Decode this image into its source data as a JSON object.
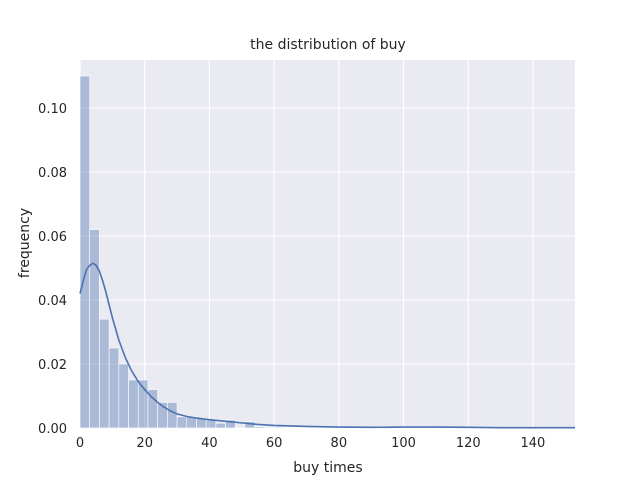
{
  "chart_data": {
    "type": "bar",
    "title": "the distribution of buy",
    "xlabel": "buy times",
    "ylabel": "frequency",
    "xlim": [
      0,
      153
    ],
    "ylim": [
      0,
      0.115
    ],
    "x_ticks": [
      0,
      20,
      40,
      60,
      80,
      100,
      120,
      140
    ],
    "y_ticks": [
      0.0,
      0.02,
      0.04,
      0.06,
      0.08,
      0.1
    ],
    "y_tick_labels": [
      "0.00",
      "0.02",
      "0.04",
      "0.06",
      "0.08",
      "0.10"
    ],
    "grid": true,
    "bin_width": 3,
    "histogram": [
      {
        "x0": 0,
        "x1": 3,
        "density": 0.11
      },
      {
        "x0": 3,
        "x1": 6,
        "density": 0.062
      },
      {
        "x0": 6,
        "x1": 9,
        "density": 0.034
      },
      {
        "x0": 9,
        "x1": 12,
        "density": 0.025
      },
      {
        "x0": 12,
        "x1": 15,
        "density": 0.02
      },
      {
        "x0": 15,
        "x1": 18,
        "density": 0.015
      },
      {
        "x0": 18,
        "x1": 21,
        "density": 0.015
      },
      {
        "x0": 21,
        "x1": 24,
        "density": 0.012
      },
      {
        "x0": 24,
        "x1": 27,
        "density": 0.008
      },
      {
        "x0": 27,
        "x1": 30,
        "density": 0.008
      },
      {
        "x0": 30,
        "x1": 33,
        "density": 0.0035
      },
      {
        "x0": 33,
        "x1": 36,
        "density": 0.0035
      },
      {
        "x0": 36,
        "x1": 39,
        "density": 0.003
      },
      {
        "x0": 39,
        "x1": 42,
        "density": 0.0025
      },
      {
        "x0": 42,
        "x1": 45,
        "density": 0.0015
      },
      {
        "x0": 45,
        "x1": 48,
        "density": 0.0025
      },
      {
        "x0": 48,
        "x1": 51,
        "density": 0.0
      },
      {
        "x0": 51,
        "x1": 54,
        "density": 0.002
      },
      {
        "x0": 54,
        "x1": 57,
        "density": 0.0004
      },
      {
        "x0": 57,
        "x1": 60,
        "density": 0.0003
      },
      {
        "x0": 60,
        "x1": 63,
        "density": 0.0003
      },
      {
        "x0": 63,
        "x1": 66,
        "density": 0.0002
      },
      {
        "x0": 66,
        "x1": 69,
        "density": 0.0002
      },
      {
        "x0": 69,
        "x1": 72,
        "density": 0.0002
      },
      {
        "x0": 72,
        "x1": 75,
        "density": 0.0001
      },
      {
        "x0": 75,
        "x1": 78,
        "density": 0.0001
      },
      {
        "x0": 78,
        "x1": 81,
        "density": 0.0001
      },
      {
        "x0": 96,
        "x1": 99,
        "density": 0.0001
      },
      {
        "x0": 117,
        "x1": 120,
        "density": 0.0001
      },
      {
        "x0": 147,
        "x1": 150,
        "density": 0.0001
      }
    ],
    "kde": {
      "x": [
        0,
        1,
        2,
        3,
        4,
        5,
        6,
        7,
        8,
        9,
        10,
        12,
        14,
        16,
        18,
        20,
        22,
        24,
        26,
        28,
        30,
        33,
        36,
        40,
        45,
        50,
        55,
        60,
        70,
        80,
        90,
        100,
        110,
        120,
        130,
        140,
        150,
        153
      ],
      "y": [
        0.042,
        0.046,
        0.0495,
        0.0508,
        0.0515,
        0.0508,
        0.049,
        0.046,
        0.0425,
        0.0385,
        0.0345,
        0.0275,
        0.022,
        0.0178,
        0.0145,
        0.012,
        0.0098,
        0.008,
        0.0065,
        0.0053,
        0.0044,
        0.0036,
        0.0031,
        0.0026,
        0.0021,
        0.0016,
        0.0011,
        0.0008,
        0.0005,
        0.0003,
        0.0002,
        0.0003,
        0.0003,
        0.0002,
        0.0001,
        0.0001,
        0.0001,
        0.0001
      ]
    },
    "colors": {
      "background": "#eaeaf2",
      "bar": "#4c72b0",
      "bar_opacity": 0.4,
      "line": "#4c72b0",
      "grid": "#ffffff"
    }
  }
}
